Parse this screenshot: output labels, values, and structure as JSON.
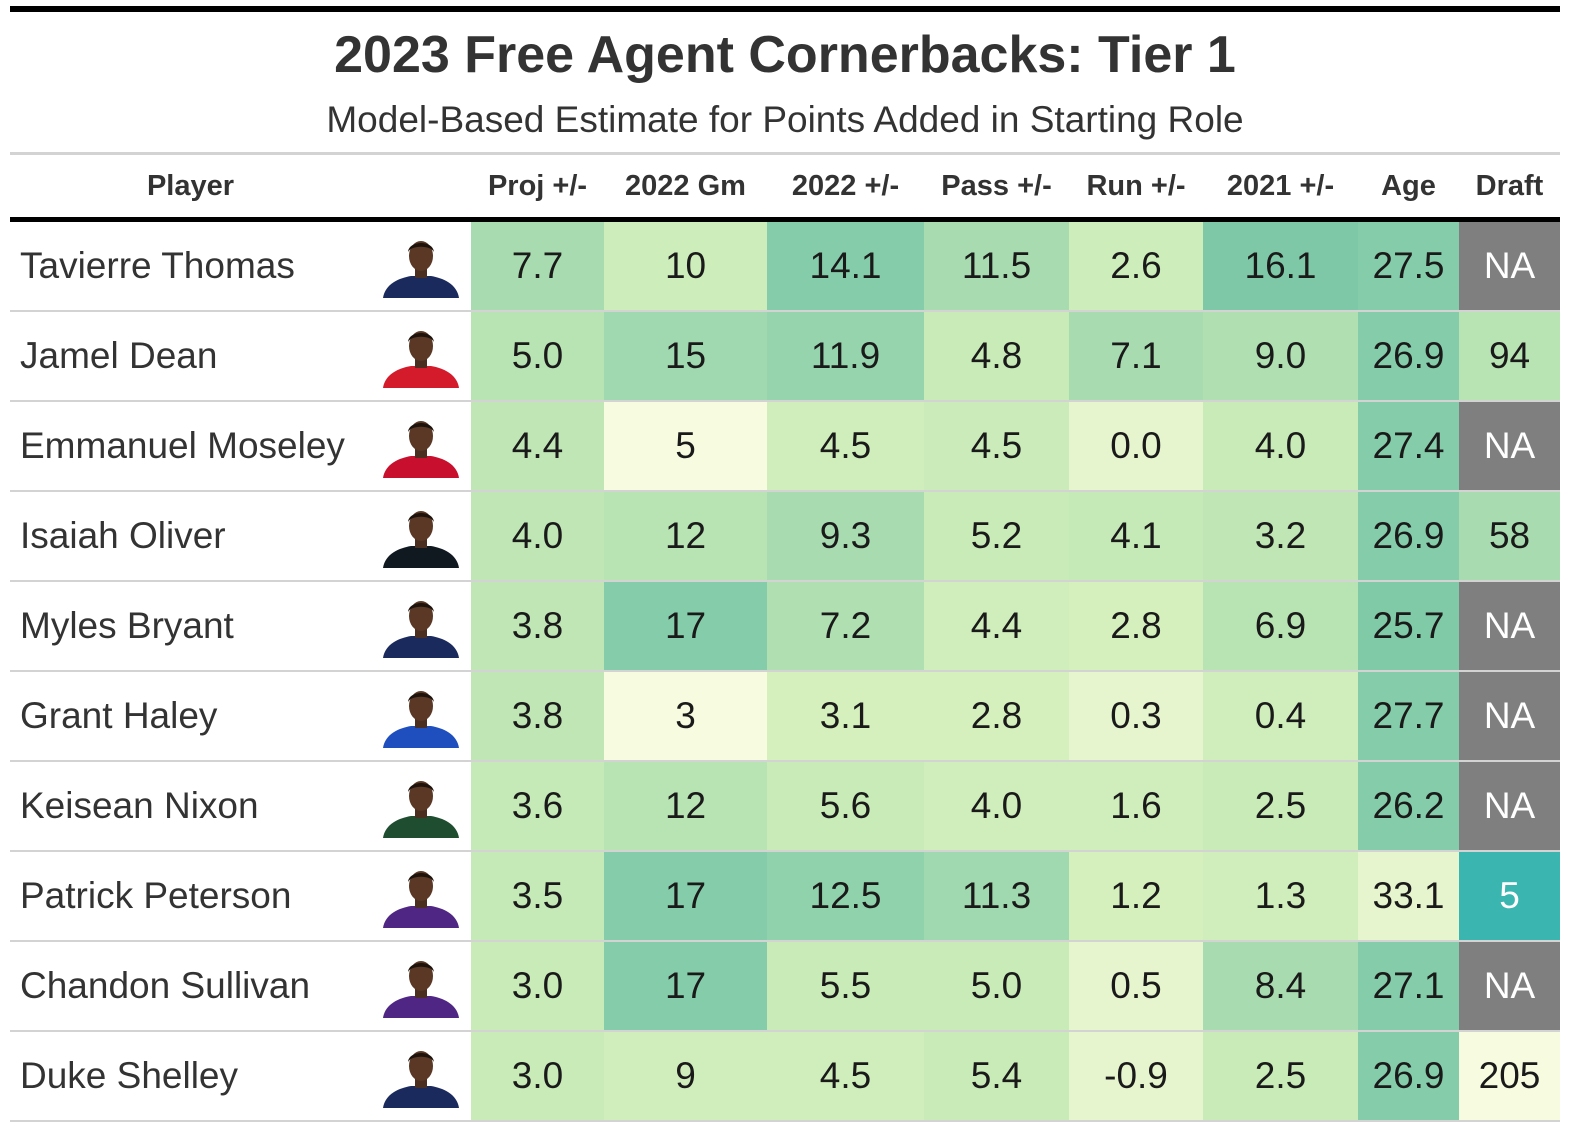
{
  "title": "2023 Free Agent Cornerbacks: Tier 1",
  "subtitle": "Model-Based Estimate for Points Added in Starting Role",
  "columns": [
    "Player",
    "",
    "Proj +/-",
    "2022 Gm",
    "2022 +/-",
    "Pass +/-",
    "Run +/-",
    "2021 +/-",
    "Age",
    "Draft"
  ],
  "rows": [
    {
      "player": "Tavierre Thomas",
      "photo": "player-headshot-icon",
      "proj": "7.7",
      "gm": "10",
      "pm22": "14.1",
      "pass": "11.5",
      "run": "2.6",
      "pm21": "16.1",
      "age": "27.5",
      "draft": "NA"
    },
    {
      "player": "Jamel Dean",
      "photo": "player-headshot-icon",
      "proj": "5.0",
      "gm": "15",
      "pm22": "11.9",
      "pass": "4.8",
      "run": "7.1",
      "pm21": "9.0",
      "age": "26.9",
      "draft": "94"
    },
    {
      "player": "Emmanuel Moseley",
      "photo": "player-headshot-icon",
      "proj": "4.4",
      "gm": "5",
      "pm22": "4.5",
      "pass": "4.5",
      "run": "0.0",
      "pm21": "4.0",
      "age": "27.4",
      "draft": "NA"
    },
    {
      "player": "Isaiah Oliver",
      "photo": "player-headshot-icon",
      "proj": "4.0",
      "gm": "12",
      "pm22": "9.3",
      "pass": "5.2",
      "run": "4.1",
      "pm21": "3.2",
      "age": "26.9",
      "draft": "58"
    },
    {
      "player": "Myles Bryant",
      "photo": "player-headshot-icon",
      "proj": "3.8",
      "gm": "17",
      "pm22": "7.2",
      "pass": "4.4",
      "run": "2.8",
      "pm21": "6.9",
      "age": "25.7",
      "draft": "NA"
    },
    {
      "player": "Grant Haley",
      "photo": "player-headshot-icon",
      "proj": "3.8",
      "gm": "3",
      "pm22": "3.1",
      "pass": "2.8",
      "run": "0.3",
      "pm21": "0.4",
      "age": "27.7",
      "draft": "NA"
    },
    {
      "player": "Keisean Nixon",
      "photo": "player-headshot-icon",
      "proj": "3.6",
      "gm": "12",
      "pm22": "5.6",
      "pass": "4.0",
      "run": "1.6",
      "pm21": "2.5",
      "age": "26.2",
      "draft": "NA"
    },
    {
      "player": "Patrick Peterson",
      "photo": "player-headshot-icon",
      "proj": "3.5",
      "gm": "17",
      "pm22": "12.5",
      "pass": "11.3",
      "run": "1.2",
      "pm21": "1.3",
      "age": "33.1",
      "draft": "5"
    },
    {
      "player": "Chandon Sullivan",
      "photo": "player-headshot-icon",
      "proj": "3.0",
      "gm": "17",
      "pm22": "5.5",
      "pass": "5.0",
      "run": "0.5",
      "pm21": "8.4",
      "age": "27.1",
      "draft": "NA"
    },
    {
      "player": "Duke Shelley",
      "photo": "player-headshot-icon",
      "proj": "3.0",
      "gm": "9",
      "pm22": "4.5",
      "pass": "5.4",
      "run": "-0.9",
      "pm21": "2.5",
      "age": "26.9",
      "draft": "205"
    }
  ],
  "cell_colors": [
    [
      "#a8dcb0",
      "#cdedba",
      "#85cdaa",
      "#a8dcb0",
      "#cdedba",
      "#7ec8a8",
      "#85cdaa",
      "#7f7f7f"
    ],
    [
      "#b8e3b3",
      "#a0d9af",
      "#95d4ad",
      "#c8ebb8",
      "#a8dcb0",
      "#b0dfb2",
      "#85cdaa",
      "#b8e3b3"
    ],
    [
      "#c0e6b5",
      "#f7fce0",
      "#d0eebb",
      "#cbecba",
      "#e6f5cd",
      "#c8ebb8",
      "#85cdaa",
      "#7f7f7f"
    ],
    [
      "#c0e6b5",
      "#b8e3b3",
      "#a8dcb0",
      "#c8ebb8",
      "#c5e9b7",
      "#c0e6b5",
      "#85cdaa",
      "#a8dcb0"
    ],
    [
      "#c0e6b5",
      "#85cdaa",
      "#b0dfb2",
      "#d0eebb",
      "#d5f0bd",
      "#b8e3b3",
      "#80caa8",
      "#7f7f7f"
    ],
    [
      "#c0e6b5",
      "#f7fce0",
      "#d5f0bd",
      "#d5f0bd",
      "#e6f5cd",
      "#d0eebb",
      "#85cdaa",
      "#7f7f7f"
    ],
    [
      "#c5e9b7",
      "#b8e3b3",
      "#c8ebb8",
      "#d0eebb",
      "#d0eebb",
      "#c8ebb8",
      "#85cdaa",
      "#7f7f7f"
    ],
    [
      "#c5e9b7",
      "#85cdaa",
      "#90d2ac",
      "#a0d9af",
      "#d5f0bd",
      "#d0eebb",
      "#e6f5cd",
      "#3ab5b0"
    ],
    [
      "#c8ebb8",
      "#85cdaa",
      "#c8ebb8",
      "#c8ebb8",
      "#e6f5cd",
      "#a8dcb0",
      "#85cdaa",
      "#7f7f7f"
    ],
    [
      "#c8ebb8",
      "#d0eebb",
      "#d0eebb",
      "#c8ebb8",
      "#e6f5cd",
      "#c8ebb8",
      "#85cdaa",
      "#f7fce0"
    ]
  ],
  "text_colors": {
    "default": "#1a1a1a",
    "na_cell": "#ffffff",
    "teal_cell": "#ffffff"
  },
  "jersey_colors": [
    "#1b2a5c",
    "#d31b2b",
    "#c8102e",
    "#101820",
    "#1b2a5c",
    "#1f4fbf",
    "#1f4d2f",
    "#4f2683",
    "#4f2683",
    "#1b2a5c"
  ],
  "chart_data": {
    "type": "table",
    "title": "2023 Free Agent Cornerbacks: Tier 1",
    "subtitle": "Model-Based Estimate for Points Added in Starting Role",
    "columns": [
      "Player",
      "Proj +/-",
      "2022 Gm",
      "2022 +/-",
      "Pass +/-",
      "Run +/-",
      "2021 +/-",
      "Age",
      "Draft"
    ],
    "rows": [
      [
        "Tavierre Thomas",
        7.7,
        10,
        14.1,
        11.5,
        2.6,
        16.1,
        27.5,
        "NA"
      ],
      [
        "Jamel Dean",
        5.0,
        15,
        11.9,
        4.8,
        7.1,
        9.0,
        26.9,
        94
      ],
      [
        "Emmanuel Moseley",
        4.4,
        5,
        4.5,
        4.5,
        0.0,
        4.0,
        27.4,
        "NA"
      ],
      [
        "Isaiah Oliver",
        4.0,
        12,
        9.3,
        5.2,
        4.1,
        3.2,
        26.9,
        58
      ],
      [
        "Myles Bryant",
        3.8,
        17,
        7.2,
        4.4,
        2.8,
        6.9,
        25.7,
        "NA"
      ],
      [
        "Grant Haley",
        3.8,
        3,
        3.1,
        2.8,
        0.3,
        0.4,
        27.7,
        "NA"
      ],
      [
        "Keisean Nixon",
        3.6,
        12,
        5.6,
        4.0,
        1.6,
        2.5,
        26.2,
        "NA"
      ],
      [
        "Patrick Peterson",
        3.5,
        17,
        12.5,
        11.3,
        1.2,
        1.3,
        33.1,
        5
      ],
      [
        "Chandon Sullivan",
        3.0,
        17,
        5.5,
        5.0,
        0.5,
        8.4,
        27.1,
        "NA"
      ],
      [
        "Duke Shelley",
        3.0,
        9,
        4.5,
        5.4,
        -0.9,
        2.5,
        26.9,
        205
      ]
    ]
  }
}
